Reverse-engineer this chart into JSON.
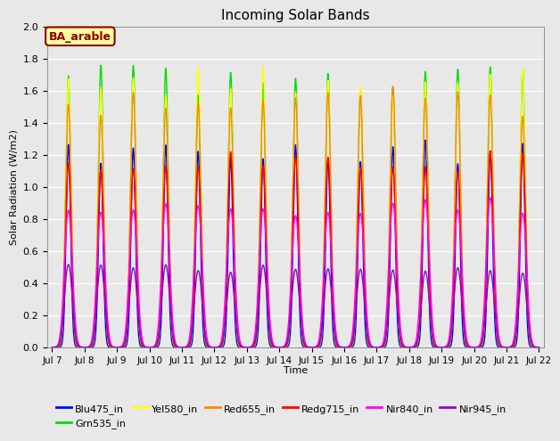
{
  "title": "Incoming Solar Bands",
  "xlabel": "Time",
  "ylabel": "Solar Radiation (W/m2)",
  "ylim": [
    0.0,
    2.0
  ],
  "start_day": 7,
  "end_day": 22,
  "annotation_text": "BA_arable",
  "annotation_bg": "#FFFFA0",
  "annotation_border": "#8B0000",
  "annotation_text_color": "#8B0000",
  "bg_color": "#E8E8E8",
  "series": [
    {
      "name": "Blu475_in",
      "color": "#0000FF",
      "peak": 1.3,
      "sigma": 0.07,
      "lw": 1.0
    },
    {
      "name": "Grn535_in",
      "color": "#00DD00",
      "peak": 1.78,
      "sigma": 0.08,
      "lw": 1.0
    },
    {
      "name": "Yel580_in",
      "color": "#FFFF00",
      "peak": 1.75,
      "sigma": 0.085,
      "lw": 1.0
    },
    {
      "name": "Red655_in",
      "color": "#FF8800",
      "peak": 1.63,
      "sigma": 0.09,
      "lw": 1.0
    },
    {
      "name": "Redg715_in",
      "color": "#FF0000",
      "peak": 1.22,
      "sigma": 0.09,
      "lw": 1.0
    },
    {
      "name": "Nir840_in",
      "color": "#FF00FF",
      "peak": 0.93,
      "sigma": 0.1,
      "lw": 1.0
    },
    {
      "name": "Nir945_in",
      "color": "#9900CC",
      "peak": 0.53,
      "sigma": 0.095,
      "lw": 1.0
    }
  ],
  "yticks": [
    0.0,
    0.2,
    0.4,
    0.6,
    0.8,
    1.0,
    1.2,
    1.4,
    1.6,
    1.8,
    2.0
  ],
  "xtick_labels": [
    "Jul 7",
    "Jul 8",
    "Jul 9",
    "Jul 10",
    "Jul 11",
    "Jul 12",
    "Jul 13",
    "Jul 14",
    "Jul 15",
    "Jul 16",
    "Jul 17",
    "Jul 18",
    "Jul 19",
    "Jul 20",
    "Jul 21",
    "Jul 22"
  ],
  "legend_order": [
    "Blu475_in",
    "Grn535_in",
    "Yel580_in",
    "Red655_in",
    "Redg715_in",
    "Nir840_in",
    "Nir945_in"
  ]
}
